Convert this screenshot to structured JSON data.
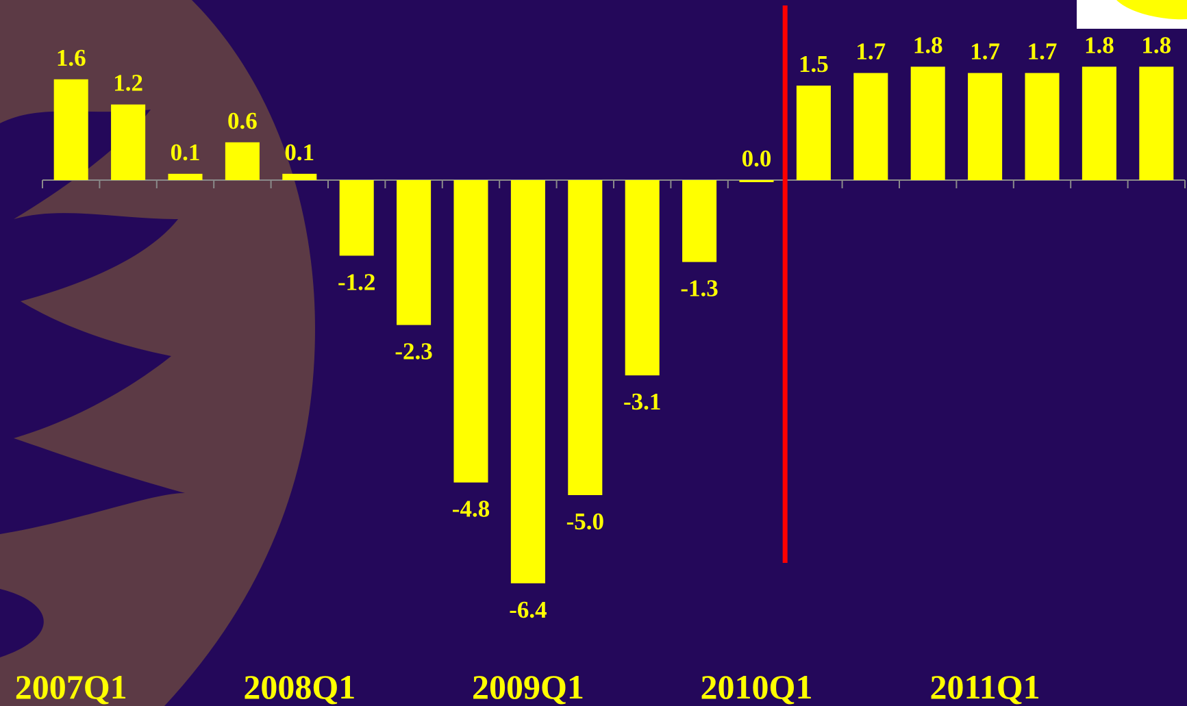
{
  "chart_data": {
    "type": "bar",
    "categories": [
      "2007Q1",
      null,
      null,
      null,
      "2008Q1",
      null,
      null,
      null,
      "2009Q1",
      null,
      null,
      null,
      "2010Q1",
      null,
      null,
      null,
      "2011Q1",
      null,
      null,
      null
    ],
    "values": [
      1.6,
      1.2,
      0.1,
      0.6,
      0.1,
      -1.2,
      -2.3,
      -4.8,
      -6.4,
      -5.0,
      -3.1,
      -1.3,
      0.0,
      1.5,
      1.7,
      1.8,
      1.7,
      1.7,
      1.8,
      1.8
    ],
    "value_labels": [
      "1.6",
      "1.2",
      "0.1",
      "0.6",
      "0.1",
      "-1.2",
      "-2.3",
      "-4.8",
      "-6.4",
      "-5.0",
      "-3.1",
      "-1.3",
      "0.0",
      "1.5",
      "1.7",
      "1.8",
      "1.7",
      "1.7",
      "1.8",
      "1.8"
    ],
    "color": "#ffff00",
    "ylim": [
      -7,
      2.5
    ]
  }
}
